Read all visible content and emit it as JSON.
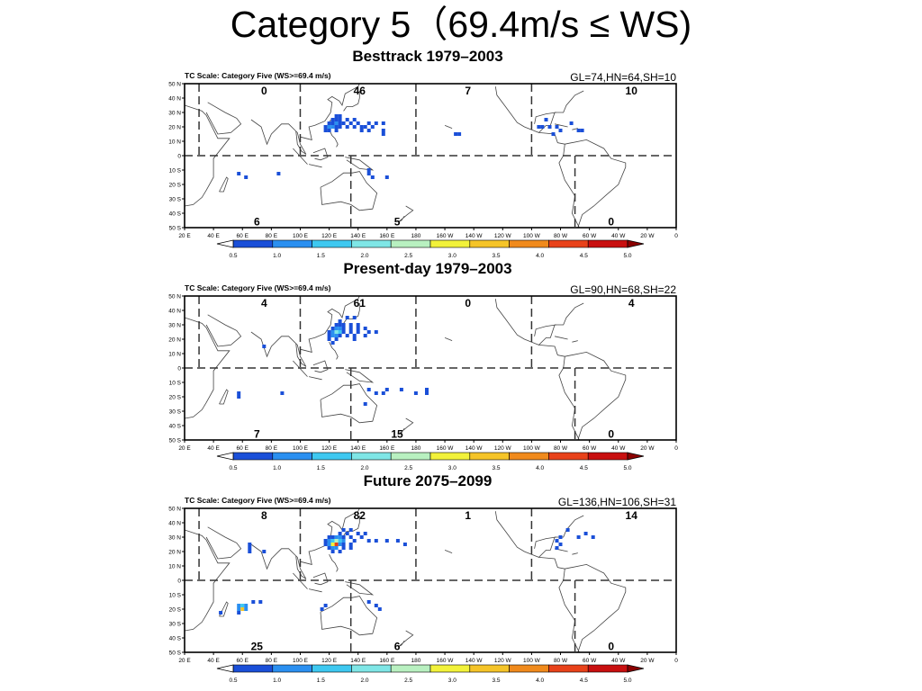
{
  "slide_title": "Category 5（69.4m/s ≤ WS)",
  "colors": {
    "bins": [
      "#1a4fd8",
      "#2a8ff0",
      "#3ec8f0",
      "#7fe6e6",
      "#b8f0c0",
      "#f2f23a",
      "#f5c428",
      "#f08a1c",
      "#e8421a",
      "#c80f0f"
    ],
    "coast": "#444444",
    "frame": "#000000"
  },
  "chart_data": [
    {
      "type": "heatmap",
      "title": "Besttrack 1979–2003",
      "subtitle": "TC Scale: Category Five (WS>=69.4 m/s)",
      "stats": "GL=74,HN=64,SH=10",
      "x_ticks": [
        "20 E",
        "40 E",
        "60 E",
        "80 E",
        "100 E",
        "120 E",
        "140 E",
        "160 E",
        "180",
        "160 W",
        "140 W",
        "120 W",
        "100 W",
        "80 W",
        "60 W",
        "40 W",
        "20 W",
        "0"
      ],
      "y_ticks": [
        "50 N",
        "40 N",
        "30 N",
        "20 N",
        "10 N",
        "0",
        "10 S",
        "20 S",
        "30 S",
        "40 S",
        "50 S"
      ],
      "lon_range": [
        20,
        360
      ],
      "lat_range": [
        -50,
        50
      ],
      "colorbar": {
        "ticks": [
          "0.5",
          "1.0",
          "1.5",
          "2.0",
          "2.5",
          "3.0",
          "3.5",
          "4.0",
          "4.5",
          "5.0"
        ],
        "min": 0.5,
        "max": 5.0
      },
      "basin_counts": [
        {
          "basin": "North Indian",
          "count": "0"
        },
        {
          "basin": "Western North Pacific",
          "count": "46"
        },
        {
          "basin": "Eastern North Pacific",
          "count": "7"
        },
        {
          "basin": "North Atlantic",
          "count": "10"
        },
        {
          "basin": "South Indian",
          "count": "6"
        },
        {
          "basin": "South Pacific",
          "count": "5"
        },
        {
          "basin": "South Atlantic",
          "count": "0"
        }
      ],
      "cells": [
        {
          "lon": 125,
          "lat": 27.5,
          "v": 0.5
        },
        {
          "lon": 127.5,
          "lat": 27.5,
          "v": 0.6
        },
        {
          "lon": 122.5,
          "lat": 25,
          "v": 0.5
        },
        {
          "lon": 125,
          "lat": 25,
          "v": 0.6
        },
        {
          "lon": 127.5,
          "lat": 25,
          "v": 0.5
        },
        {
          "lon": 132.5,
          "lat": 25,
          "v": 0.5
        },
        {
          "lon": 137.5,
          "lat": 25,
          "v": 0.5
        },
        {
          "lon": 120,
          "lat": 22.5,
          "v": 0.6
        },
        {
          "lon": 122.5,
          "lat": 22.5,
          "v": 0.9
        },
        {
          "lon": 125,
          "lat": 22.5,
          "v": 1.2
        },
        {
          "lon": 127.5,
          "lat": 22.5,
          "v": 0.7
        },
        {
          "lon": 130,
          "lat": 22.5,
          "v": 0.6
        },
        {
          "lon": 135,
          "lat": 22.5,
          "v": 0.5
        },
        {
          "lon": 140,
          "lat": 22.5,
          "v": 0.6
        },
        {
          "lon": 147.5,
          "lat": 22.5,
          "v": 0.5
        },
        {
          "lon": 152.5,
          "lat": 22.5,
          "v": 0.6
        },
        {
          "lon": 157.5,
          "lat": 22.5,
          "v": 0.5
        },
        {
          "lon": 117.5,
          "lat": 20,
          "v": 0.6
        },
        {
          "lon": 120,
          "lat": 20,
          "v": 1.4
        },
        {
          "lon": 122.5,
          "lat": 20,
          "v": 1.1
        },
        {
          "lon": 125,
          "lat": 20,
          "v": 0.9
        },
        {
          "lon": 127.5,
          "lat": 20,
          "v": 0.6
        },
        {
          "lon": 132.5,
          "lat": 20,
          "v": 0.6
        },
        {
          "lon": 137.5,
          "lat": 20,
          "v": 0.5
        },
        {
          "lon": 142.5,
          "lat": 20,
          "v": 0.6
        },
        {
          "lon": 145,
          "lat": 20,
          "v": 0.5
        },
        {
          "lon": 150,
          "lat": 20,
          "v": 0.6
        },
        {
          "lon": 117.5,
          "lat": 17.5,
          "v": 0.5
        },
        {
          "lon": 120,
          "lat": 17.5,
          "v": 0.8
        },
        {
          "lon": 125,
          "lat": 17.5,
          "v": 0.6
        },
        {
          "lon": 142.5,
          "lat": 17.5,
          "v": 0.5
        },
        {
          "lon": 147.5,
          "lat": 17.5,
          "v": 0.5
        },
        {
          "lon": 157.5,
          "lat": 17.5,
          "v": 0.5
        },
        {
          "lon": 157.5,
          "lat": 15,
          "v": 0.5
        },
        {
          "lon": 207.5,
          "lat": 15,
          "v": 0.5
        },
        {
          "lon": 210,
          "lat": 15,
          "v": 0.5
        },
        {
          "lon": 270,
          "lat": 25,
          "v": 0.5
        },
        {
          "lon": 287.5,
          "lat": 22.5,
          "v": 0.5
        },
        {
          "lon": 265,
          "lat": 20,
          "v": 0.6
        },
        {
          "lon": 267.5,
          "lat": 20,
          "v": 0.5
        },
        {
          "lon": 272.5,
          "lat": 20,
          "v": 0.5
        },
        {
          "lon": 277.5,
          "lat": 20,
          "v": 0.6
        },
        {
          "lon": 280,
          "lat": 17.5,
          "v": 0.5
        },
        {
          "lon": 292.5,
          "lat": 17.5,
          "v": 0.5
        },
        {
          "lon": 295,
          "lat": 17.5,
          "v": 0.5
        },
        {
          "lon": 275,
          "lat": 15,
          "v": 0.5
        },
        {
          "lon": 57.5,
          "lat": -12.5,
          "v": 0.6
        },
        {
          "lon": 62.5,
          "lat": -15,
          "v": 0.5
        },
        {
          "lon": 85,
          "lat": -12.5,
          "v": 0.5
        },
        {
          "lon": 147.5,
          "lat": -10,
          "v": 0.5
        },
        {
          "lon": 147.5,
          "lat": -12.5,
          "v": 0.5
        },
        {
          "lon": 150,
          "lat": -15,
          "v": 0.6
        },
        {
          "lon": 160,
          "lat": -15,
          "v": 0.5
        }
      ]
    },
    {
      "type": "heatmap",
      "title": "Present-day 1979–2003",
      "subtitle": "TC Scale: Category Five (WS>=69.4 m/s)",
      "stats": "GL=90,HN=68,SH=22",
      "x_ticks": [
        "20 E",
        "40 E",
        "60 E",
        "80 E",
        "100 E",
        "120 E",
        "140 E",
        "160 E",
        "180",
        "160 W",
        "140 W",
        "120 W",
        "100 W",
        "80 W",
        "60 W",
        "40 W",
        "20 W",
        "0"
      ],
      "y_ticks": [
        "50 N",
        "40 N",
        "30 N",
        "20 N",
        "10 N",
        "0",
        "10 S",
        "20 S",
        "30 S",
        "40 S",
        "50 S"
      ],
      "lon_range": [
        20,
        360
      ],
      "lat_range": [
        -50,
        50
      ],
      "colorbar": {
        "ticks": [
          "0.5",
          "1.0",
          "1.5",
          "2.0",
          "2.5",
          "3.0",
          "3.5",
          "4.0",
          "4.5",
          "5.0"
        ],
        "min": 0.5,
        "max": 5.0
      },
      "basin_counts": [
        {
          "basin": "North Indian",
          "count": "4"
        },
        {
          "basin": "Western North Pacific",
          "count": "61"
        },
        {
          "basin": "Eastern North Pacific",
          "count": "0"
        },
        {
          "basin": "North Atlantic",
          "count": "4"
        },
        {
          "basin": "South Indian",
          "count": "7"
        },
        {
          "basin": "South Pacific",
          "count": "15"
        },
        {
          "basin": "South Atlantic",
          "count": "0"
        }
      ],
      "cells": [
        {
          "lon": 127.5,
          "lat": 32.5,
          "v": 0.5
        },
        {
          "lon": 132.5,
          "lat": 35,
          "v": 0.5
        },
        {
          "lon": 137.5,
          "lat": 35,
          "v": 0.6
        },
        {
          "lon": 125,
          "lat": 30,
          "v": 0.6
        },
        {
          "lon": 127.5,
          "lat": 30,
          "v": 0.7
        },
        {
          "lon": 130,
          "lat": 30,
          "v": 0.6
        },
        {
          "lon": 135,
          "lat": 30,
          "v": 0.5
        },
        {
          "lon": 140,
          "lat": 30,
          "v": 0.5
        },
        {
          "lon": 122.5,
          "lat": 27.5,
          "v": 0.8
        },
        {
          "lon": 125,
          "lat": 27.5,
          "v": 1.3
        },
        {
          "lon": 127.5,
          "lat": 27.5,
          "v": 1.0
        },
        {
          "lon": 130,
          "lat": 27.5,
          "v": 0.7
        },
        {
          "lon": 135,
          "lat": 27.5,
          "v": 0.6
        },
        {
          "lon": 140,
          "lat": 27.5,
          "v": 0.6
        },
        {
          "lon": 145,
          "lat": 27.5,
          "v": 0.5
        },
        {
          "lon": 120,
          "lat": 25,
          "v": 0.6
        },
        {
          "lon": 122.5,
          "lat": 25,
          "v": 1.2
        },
        {
          "lon": 125,
          "lat": 25,
          "v": 2.3
        },
        {
          "lon": 127.5,
          "lat": 25,
          "v": 1.5
        },
        {
          "lon": 130,
          "lat": 25,
          "v": 0.9
        },
        {
          "lon": 135,
          "lat": 25,
          "v": 0.7
        },
        {
          "lon": 140,
          "lat": 25,
          "v": 0.6
        },
        {
          "lon": 147.5,
          "lat": 25,
          "v": 0.6
        },
        {
          "lon": 152.5,
          "lat": 25,
          "v": 0.5
        },
        {
          "lon": 120,
          "lat": 22.5,
          "v": 0.8
        },
        {
          "lon": 122.5,
          "lat": 22.5,
          "v": 1.4
        },
        {
          "lon": 125,
          "lat": 22.5,
          "v": 1.0
        },
        {
          "lon": 127.5,
          "lat": 22.5,
          "v": 0.9
        },
        {
          "lon": 132.5,
          "lat": 22.5,
          "v": 0.6
        },
        {
          "lon": 137.5,
          "lat": 22.5,
          "v": 0.6
        },
        {
          "lon": 145,
          "lat": 22.5,
          "v": 0.5
        },
        {
          "lon": 120,
          "lat": 20,
          "v": 0.7
        },
        {
          "lon": 125,
          "lat": 20,
          "v": 0.6
        },
        {
          "lon": 137.5,
          "lat": 20,
          "v": 0.5
        },
        {
          "lon": 122.5,
          "lat": 17.5,
          "v": 0.5
        },
        {
          "lon": 75,
          "lat": 15,
          "v": 0.6
        },
        {
          "lon": 57.5,
          "lat": -17.5,
          "v": 0.8
        },
        {
          "lon": 57.5,
          "lat": -20,
          "v": 0.6
        },
        {
          "lon": 87.5,
          "lat": -17.5,
          "v": 0.5
        },
        {
          "lon": 147.5,
          "lat": -15,
          "v": 0.6
        },
        {
          "lon": 152.5,
          "lat": -17.5,
          "v": 0.6
        },
        {
          "lon": 157.5,
          "lat": -17.5,
          "v": 0.7
        },
        {
          "lon": 160,
          "lat": -15,
          "v": 0.5
        },
        {
          "lon": 170,
          "lat": -15,
          "v": 0.5
        },
        {
          "lon": 180,
          "lat": -17.5,
          "v": 0.6
        },
        {
          "lon": 187.5,
          "lat": -15,
          "v": 0.7
        },
        {
          "lon": 187.5,
          "lat": -17.5,
          "v": 0.6
        },
        {
          "lon": 145,
          "lat": -25,
          "v": 0.5
        }
      ]
    },
    {
      "type": "heatmap",
      "title": "Future 2075–2099",
      "subtitle": "TC Scale: Category Five (WS>=69.4 m/s)",
      "stats": "GL=136,HN=106,SH=31",
      "x_ticks": [
        "20 E",
        "40 E",
        "60 E",
        "80 E",
        "100 E",
        "120 E",
        "140 E",
        "160 E",
        "180",
        "160 W",
        "140 W",
        "120 W",
        "100 W",
        "80 W",
        "60 W",
        "40 W",
        "20 W",
        "0"
      ],
      "y_ticks": [
        "50 N",
        "40 N",
        "30 N",
        "20 N",
        "10 N",
        "0",
        "10 S",
        "20 S",
        "30 S",
        "40 S",
        "50 S"
      ],
      "lon_range": [
        20,
        360
      ],
      "lat_range": [
        -50,
        50
      ],
      "colorbar": {
        "ticks": [
          "0.5",
          "1.0",
          "1.5",
          "2.0",
          "2.5",
          "3.0",
          "3.5",
          "4.0",
          "4.5",
          "5.0"
        ],
        "min": 0.5,
        "max": 5.0
      },
      "basin_counts": [
        {
          "basin": "North Indian",
          "count": "8"
        },
        {
          "basin": "Western North Pacific",
          "count": "82"
        },
        {
          "basin": "Eastern North Pacific",
          "count": "1"
        },
        {
          "basin": "North Atlantic",
          "count": "14"
        },
        {
          "basin": "South Indian",
          "count": "25"
        },
        {
          "basin": "South Pacific",
          "count": "6"
        },
        {
          "basin": "South Atlantic",
          "count": "0"
        }
      ],
      "cells": [
        {
          "lon": 130,
          "lat": 35,
          "v": 0.5
        },
        {
          "lon": 135,
          "lat": 35,
          "v": 0.6
        },
        {
          "lon": 140,
          "lat": 32.5,
          "v": 0.5
        },
        {
          "lon": 145,
          "lat": 32.5,
          "v": 0.6
        },
        {
          "lon": 127.5,
          "lat": 32.5,
          "v": 0.6
        },
        {
          "lon": 132.5,
          "lat": 32.5,
          "v": 0.7
        },
        {
          "lon": 120,
          "lat": 30,
          "v": 0.6
        },
        {
          "lon": 122.5,
          "lat": 30,
          "v": 0.8
        },
        {
          "lon": 125,
          "lat": 30,
          "v": 1.2
        },
        {
          "lon": 127.5,
          "lat": 30,
          "v": 1.0
        },
        {
          "lon": 130,
          "lat": 30,
          "v": 0.8
        },
        {
          "lon": 135,
          "lat": 30,
          "v": 0.6
        },
        {
          "lon": 142.5,
          "lat": 30,
          "v": 0.6
        },
        {
          "lon": 117.5,
          "lat": 27.5,
          "v": 0.7
        },
        {
          "lon": 120,
          "lat": 27.5,
          "v": 1.0
        },
        {
          "lon": 122.5,
          "lat": 27.5,
          "v": 1.5
        },
        {
          "lon": 125,
          "lat": 27.5,
          "v": 2.6
        },
        {
          "lon": 127.5,
          "lat": 27.5,
          "v": 1.6
        },
        {
          "lon": 130,
          "lat": 27.5,
          "v": 1.0
        },
        {
          "lon": 137.5,
          "lat": 27.5,
          "v": 0.6
        },
        {
          "lon": 147.5,
          "lat": 27.5,
          "v": 0.6
        },
        {
          "lon": 152.5,
          "lat": 27.5,
          "v": 0.6
        },
        {
          "lon": 160,
          "lat": 27.5,
          "v": 0.5
        },
        {
          "lon": 167.5,
          "lat": 27.5,
          "v": 0.5
        },
        {
          "lon": 117.5,
          "lat": 25,
          "v": 0.6
        },
        {
          "lon": 120,
          "lat": 25,
          "v": 1.0
        },
        {
          "lon": 122.5,
          "lat": 25,
          "v": 3.1
        },
        {
          "lon": 125,
          "lat": 25,
          "v": 4.2
        },
        {
          "lon": 127.5,
          "lat": 25,
          "v": 1.4
        },
        {
          "lon": 130,
          "lat": 25,
          "v": 0.8
        },
        {
          "lon": 135,
          "lat": 25,
          "v": 0.6
        },
        {
          "lon": 172.5,
          "lat": 25,
          "v": 0.5
        },
        {
          "lon": 120,
          "lat": 22.5,
          "v": 0.7
        },
        {
          "lon": 122.5,
          "lat": 22.5,
          "v": 1.3
        },
        {
          "lon": 125,
          "lat": 22.5,
          "v": 1.1
        },
        {
          "lon": 130,
          "lat": 22.5,
          "v": 0.6
        },
        {
          "lon": 135,
          "lat": 22.5,
          "v": 0.5
        },
        {
          "lon": 122.5,
          "lat": 20,
          "v": 0.6
        },
        {
          "lon": 127.5,
          "lat": 20,
          "v": 0.5
        },
        {
          "lon": 65,
          "lat": 25,
          "v": 0.6
        },
        {
          "lon": 65,
          "lat": 22.5,
          "v": 0.7
        },
        {
          "lon": 65,
          "lat": 20,
          "v": 0.6
        },
        {
          "lon": 75,
          "lat": 20,
          "v": 0.5
        },
        {
          "lon": 277.5,
          "lat": 27.5,
          "v": 0.6
        },
        {
          "lon": 280,
          "lat": 30,
          "v": 0.5
        },
        {
          "lon": 280,
          "lat": 25,
          "v": 0.6
        },
        {
          "lon": 277.5,
          "lat": 22.5,
          "v": 0.5
        },
        {
          "lon": 292.5,
          "lat": 30,
          "v": 0.5
        },
        {
          "lon": 297.5,
          "lat": 32.5,
          "v": 0.5
        },
        {
          "lon": 302.5,
          "lat": 30,
          "v": 0.5
        },
        {
          "lon": 285,
          "lat": 35,
          "v": 0.5
        },
        {
          "lon": 57.5,
          "lat": -17.5,
          "v": 1.0
        },
        {
          "lon": 60,
          "lat": -17.5,
          "v": 1.6
        },
        {
          "lon": 62.5,
          "lat": -17.5,
          "v": 1.1
        },
        {
          "lon": 57.5,
          "lat": -20,
          "v": 1.3
        },
        {
          "lon": 60,
          "lat": -20,
          "v": 3.2
        },
        {
          "lon": 62.5,
          "lat": -20,
          "v": 1.2
        },
        {
          "lon": 57.5,
          "lat": -22.5,
          "v": 0.8
        },
        {
          "lon": 45,
          "lat": -22.5,
          "v": 0.6
        },
        {
          "lon": 67.5,
          "lat": -15,
          "v": 0.5
        },
        {
          "lon": 72.5,
          "lat": -15,
          "v": 0.7
        },
        {
          "lon": 117.5,
          "lat": -17.5,
          "v": 0.7
        },
        {
          "lon": 115,
          "lat": -20,
          "v": 0.6
        },
        {
          "lon": 147.5,
          "lat": -15,
          "v": 0.6
        },
        {
          "lon": 152.5,
          "lat": -17.5,
          "v": 0.6
        },
        {
          "lon": 155,
          "lat": -20,
          "v": 0.5
        }
      ]
    }
  ]
}
